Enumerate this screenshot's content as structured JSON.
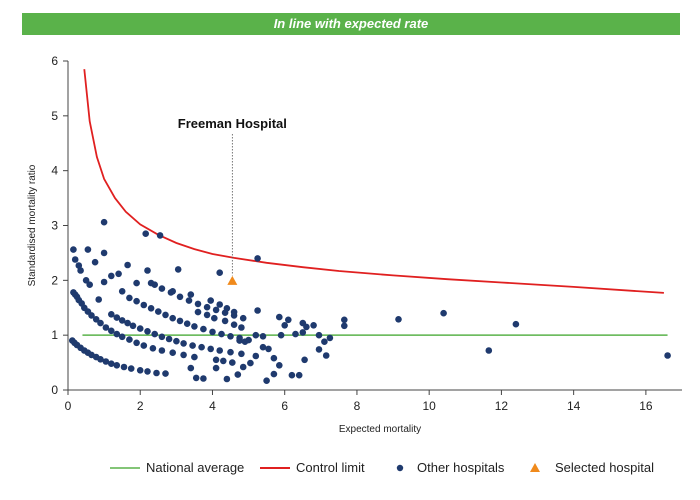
{
  "banner": {
    "text": "In line with expected rate"
  },
  "chart_data": {
    "type": "scatter",
    "title": "",
    "xlabel": "Expected mortality",
    "ylabel": "Standardised mortality ratio",
    "xlim": [
      0,
      17
    ],
    "ylim": [
      0,
      6
    ],
    "xticks": [
      0,
      2,
      4,
      6,
      8,
      10,
      12,
      14,
      16
    ],
    "yticks": [
      0,
      1,
      2,
      3,
      4,
      5,
      6
    ],
    "grid": false,
    "legend_position": "bottom",
    "colors": {
      "national_average": "#5ab24a",
      "control_limit": "#e02020",
      "other_hospitals": "#1f3a6e",
      "selected_hospital": "#f08a1c",
      "banner": "#5ab24a"
    },
    "national_average": {
      "name": "National average",
      "y": 1.0,
      "x_range": [
        0.4,
        16.6
      ]
    },
    "control_limit": {
      "name": "Control limit",
      "points": [
        [
          0.45,
          5.85
        ],
        [
          0.6,
          4.9
        ],
        [
          0.8,
          4.25
        ],
        [
          1.0,
          3.85
        ],
        [
          1.3,
          3.5
        ],
        [
          1.6,
          3.25
        ],
        [
          2.0,
          3.02
        ],
        [
          2.5,
          2.83
        ],
        [
          3.0,
          2.68
        ],
        [
          3.5,
          2.57
        ],
        [
          4.0,
          2.48
        ],
        [
          4.6,
          2.41
        ],
        [
          5.5,
          2.32
        ],
        [
          6.5,
          2.24
        ],
        [
          7.5,
          2.17
        ],
        [
          9.0,
          2.09
        ],
        [
          10.5,
          2.02
        ],
        [
          12.0,
          1.96
        ],
        [
          14.0,
          1.88
        ],
        [
          16.5,
          1.77
        ]
      ]
    },
    "other_hospitals": {
      "name": "Other hospitals",
      "points": [
        [
          0.15,
          2.56
        ],
        [
          0.2,
          2.38
        ],
        [
          0.3,
          2.27
        ],
        [
          0.35,
          2.18
        ],
        [
          0.55,
          2.56
        ],
        [
          0.75,
          2.33
        ],
        [
          1.0,
          2.5
        ],
        [
          1.2,
          2.08
        ],
        [
          1.4,
          2.12
        ],
        [
          1.65,
          2.28
        ],
        [
          2.15,
          2.85
        ],
        [
          2.55,
          2.82
        ],
        [
          1.0,
          3.06
        ],
        [
          2.2,
          2.18
        ],
        [
          3.05,
          2.2
        ],
        [
          4.2,
          2.14
        ],
        [
          5.25,
          2.4
        ],
        [
          0.5,
          2.0
        ],
        [
          0.6,
          1.92
        ],
        [
          0.85,
          1.65
        ],
        [
          1.0,
          1.97
        ],
        [
          1.5,
          1.8
        ],
        [
          1.9,
          1.95
        ],
        [
          2.3,
          1.95
        ],
        [
          2.9,
          1.8
        ],
        [
          3.4,
          1.74
        ],
        [
          0.15,
          1.78
        ],
        [
          0.2,
          1.74
        ],
        [
          0.25,
          1.7
        ],
        [
          0.3,
          1.64
        ],
        [
          0.38,
          1.58
        ],
        [
          0.45,
          1.5
        ],
        [
          0.55,
          1.43
        ],
        [
          0.65,
          1.36
        ],
        [
          0.78,
          1.29
        ],
        [
          0.9,
          1.22
        ],
        [
          1.05,
          1.14
        ],
        [
          1.2,
          1.08
        ],
        [
          1.35,
          1.02
        ],
        [
          1.5,
          0.97
        ],
        [
          1.7,
          0.92
        ],
        [
          1.9,
          0.86
        ],
        [
          2.1,
          0.81
        ],
        [
          2.35,
          0.76
        ],
        [
          2.6,
          0.72
        ],
        [
          2.9,
          0.68
        ],
        [
          3.2,
          0.64
        ],
        [
          3.5,
          0.6
        ],
        [
          0.12,
          0.9
        ],
        [
          0.18,
          0.86
        ],
        [
          0.25,
          0.82
        ],
        [
          0.35,
          0.77
        ],
        [
          0.45,
          0.72
        ],
        [
          0.55,
          0.68
        ],
        [
          0.65,
          0.64
        ],
        [
          0.78,
          0.6
        ],
        [
          0.9,
          0.56
        ],
        [
          1.05,
          0.52
        ],
        [
          1.2,
          0.48
        ],
        [
          1.35,
          0.45
        ],
        [
          1.55,
          0.42
        ],
        [
          1.75,
          0.39
        ],
        [
          2.0,
          0.36
        ],
        [
          2.2,
          0.34
        ],
        [
          2.45,
          0.31
        ],
        [
          2.7,
          0.3
        ],
        [
          1.2,
          1.38
        ],
        [
          1.35,
          1.32
        ],
        [
          1.5,
          1.27
        ],
        [
          1.65,
          1.22
        ],
        [
          1.8,
          1.17
        ],
        [
          2.0,
          1.12
        ],
        [
          2.2,
          1.07
        ],
        [
          2.4,
          1.02
        ],
        [
          2.6,
          0.97
        ],
        [
          2.8,
          0.93
        ],
        [
          3.0,
          0.89
        ],
        [
          3.2,
          0.85
        ],
        [
          3.45,
          0.81
        ],
        [
          3.7,
          0.78
        ],
        [
          3.95,
          0.75
        ],
        [
          4.2,
          0.72
        ],
        [
          4.5,
          0.69
        ],
        [
          4.8,
          0.66
        ],
        [
          1.7,
          1.68
        ],
        [
          1.9,
          1.62
        ],
        [
          2.1,
          1.55
        ],
        [
          2.3,
          1.49
        ],
        [
          2.5,
          1.43
        ],
        [
          2.7,
          1.37
        ],
        [
          2.9,
          1.31
        ],
        [
          3.1,
          1.26
        ],
        [
          3.3,
          1.21
        ],
        [
          3.5,
          1.16
        ],
        [
          3.75,
          1.11
        ],
        [
          4.0,
          1.06
        ],
        [
          4.25,
          1.02
        ],
        [
          4.5,
          0.98
        ],
        [
          4.75,
          0.95
        ],
        [
          5.0,
          0.91
        ],
        [
          2.4,
          1.92
        ],
        [
          2.6,
          1.85
        ],
        [
          2.85,
          1.78
        ],
        [
          3.1,
          1.7
        ],
        [
          3.35,
          1.63
        ],
        [
          3.6,
          1.57
        ],
        [
          3.85,
          1.51
        ],
        [
          4.1,
          1.46
        ],
        [
          4.35,
          1.41
        ],
        [
          4.6,
          1.36
        ],
        [
          4.85,
          1.31
        ],
        [
          3.6,
          1.42
        ],
        [
          3.85,
          1.37
        ],
        [
          4.05,
          1.31
        ],
        [
          4.35,
          1.26
        ],
        [
          4.6,
          1.19
        ],
        [
          4.8,
          1.14
        ],
        [
          3.95,
          1.63
        ],
        [
          4.2,
          1.56
        ],
        [
          4.4,
          1.49
        ],
        [
          4.6,
          1.42
        ],
        [
          3.4,
          0.4
        ],
        [
          3.55,
          0.22
        ],
        [
          3.75,
          0.21
        ],
        [
          4.1,
          0.4
        ],
        [
          4.4,
          0.2
        ],
        [
          4.7,
          0.28
        ],
        [
          4.85,
          0.42
        ],
        [
          5.05,
          0.49
        ],
        [
          5.2,
          0.62
        ],
        [
          5.4,
          0.78
        ],
        [
          5.55,
          0.75
        ],
        [
          5.7,
          0.58
        ],
        [
          5.85,
          0.45
        ],
        [
          5.5,
          0.17
        ],
        [
          5.7,
          0.29
        ],
        [
          6.2,
          0.27
        ],
        [
          6.4,
          0.27
        ],
        [
          6.55,
          0.55
        ],
        [
          4.1,
          0.55
        ],
        [
          4.3,
          0.53
        ],
        [
          4.55,
          0.5
        ],
        [
          4.75,
          0.9
        ],
        [
          4.9,
          0.88
        ],
        [
          5.2,
          1.0
        ],
        [
          5.4,
          0.98
        ],
        [
          5.9,
          1.0
        ],
        [
          6.0,
          1.18
        ],
        [
          6.1,
          1.28
        ],
        [
          6.3,
          1.02
        ],
        [
          6.5,
          1.22
        ],
        [
          6.6,
          1.15
        ],
        [
          6.8,
          1.18
        ],
        [
          6.95,
          1.0
        ],
        [
          7.1,
          0.88
        ],
        [
          7.25,
          0.95
        ],
        [
          6.95,
          0.74
        ],
        [
          7.15,
          0.63
        ],
        [
          5.85,
          1.33
        ],
        [
          7.65,
          1.28
        ],
        [
          7.65,
          1.17
        ],
        [
          5.25,
          1.45
        ],
        [
          6.5,
          1.05
        ],
        [
          9.15,
          1.29
        ],
        [
          10.4,
          1.4
        ],
        [
          11.65,
          0.72
        ],
        [
          12.4,
          1.2
        ],
        [
          16.6,
          0.63
        ]
      ]
    },
    "selected_hospital": {
      "name": "Selected hospital",
      "label": "Freeman Hospital",
      "x": 4.55,
      "y": 1.98
    }
  },
  "legend": {
    "national_average": "National average",
    "control_limit": "Control limit",
    "other_hospitals": "Other hospitals",
    "selected_hospital": "Selected hospital"
  }
}
